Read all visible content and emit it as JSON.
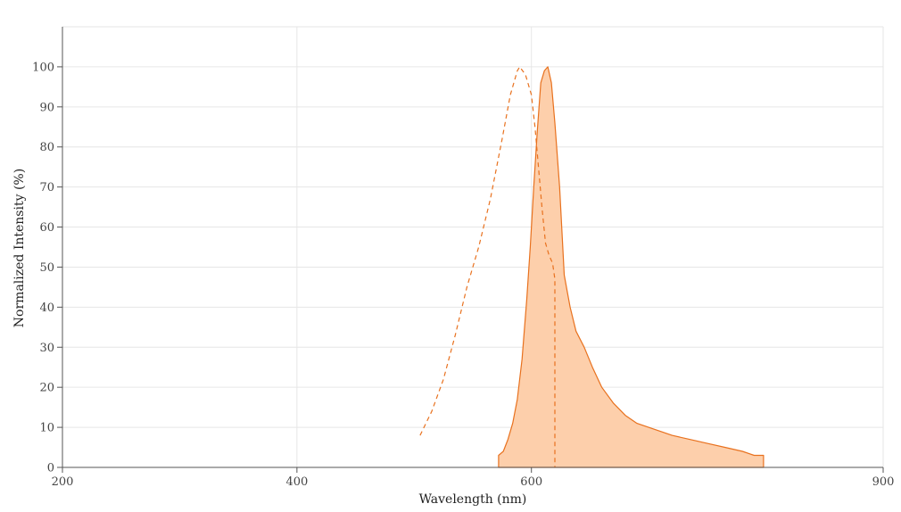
{
  "chart_data": {
    "type": "area",
    "title": "",
    "xlabel": "Wavelength (nm)",
    "ylabel": "Normalized Intensity (%)",
    "xlim": [
      200,
      900
    ],
    "ylim": [
      0,
      110
    ],
    "x_ticks": [
      200,
      400,
      600,
      900
    ],
    "y_ticks": [
      0,
      10,
      20,
      30,
      40,
      50,
      60,
      70,
      80,
      90,
      100
    ],
    "grid": true,
    "colors": {
      "series": "#e8711e",
      "fill": "#fdcfab"
    },
    "series": [
      {
        "style": "dashed",
        "points": [
          [
            505,
            8
          ],
          [
            515,
            14
          ],
          [
            525,
            22
          ],
          [
            535,
            33
          ],
          [
            545,
            45
          ],
          [
            555,
            55
          ],
          [
            565,
            67
          ],
          [
            575,
            82
          ],
          [
            582,
            93
          ],
          [
            588,
            99
          ],
          [
            590,
            100
          ],
          [
            595,
            98
          ],
          [
            600,
            93
          ],
          [
            603,
            85
          ],
          [
            606,
            75
          ],
          [
            609,
            65
          ],
          [
            612,
            56
          ],
          [
            615,
            53
          ],
          [
            618,
            51
          ],
          [
            620,
            47
          ],
          [
            620,
            0
          ]
        ]
      },
      {
        "style": "filled",
        "points": [
          [
            572,
            3
          ],
          [
            576,
            4
          ],
          [
            580,
            7
          ],
          [
            584,
            11
          ],
          [
            588,
            17
          ],
          [
            592,
            27
          ],
          [
            596,
            42
          ],
          [
            599,
            55
          ],
          [
            602,
            70
          ],
          [
            605,
            84
          ],
          [
            608,
            96
          ],
          [
            611,
            99
          ],
          [
            614,
            100
          ],
          [
            617,
            96
          ],
          [
            620,
            86
          ],
          [
            624,
            70
          ],
          [
            628,
            48
          ],
          [
            633,
            40
          ],
          [
            638,
            34
          ],
          [
            645,
            30
          ],
          [
            652,
            25
          ],
          [
            660,
            20
          ],
          [
            670,
            16
          ],
          [
            680,
            13
          ],
          [
            690,
            11
          ],
          [
            700,
            10
          ],
          [
            710,
            9
          ],
          [
            720,
            8
          ],
          [
            735,
            7
          ],
          [
            750,
            6
          ],
          [
            765,
            5
          ],
          [
            780,
            4
          ],
          [
            790,
            3
          ],
          [
            798,
            3
          ],
          [
            798,
            0
          ],
          [
            572,
            0
          ]
        ]
      }
    ]
  }
}
